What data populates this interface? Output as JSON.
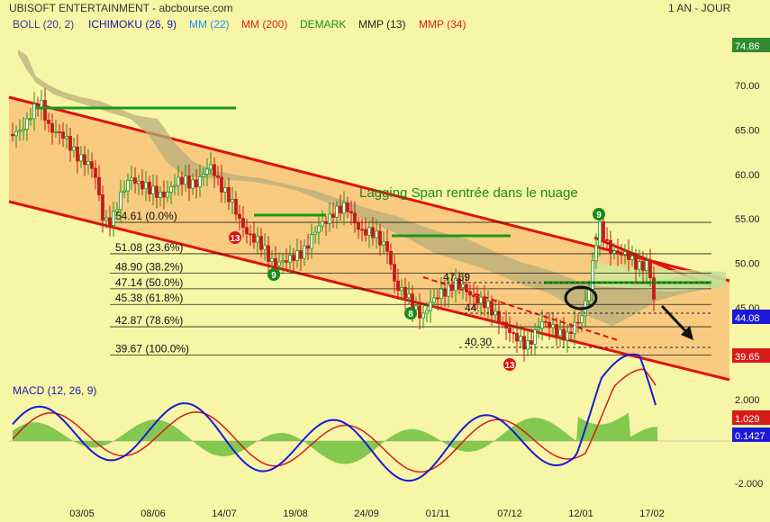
{
  "header": {
    "title": "UBISOFT ENTERTAINMENT - abcbourse.com",
    "period": "1 AN - JOUR"
  },
  "legend": [
    {
      "label": "BOLL (20, 2)",
      "color": "#3a3aa0"
    },
    {
      "label": "ICHIMOKU (26, 9)",
      "color": "#1a1ab0"
    },
    {
      "label": "MM (22)",
      "color": "#1e90ff"
    },
    {
      "label": "MM (200)",
      "color": "#e02020"
    },
    {
      "label": "DEMARK",
      "color": "#1a8a1a"
    },
    {
      "label": "MMP (13)",
      "color": "#222222"
    },
    {
      "label": "MMP (34)",
      "color": "#e02020"
    }
  ],
  "colors": {
    "background": "#f7f5a6",
    "up_candle": "#1a9a1a",
    "down_candle": "#c81818",
    "channel_line": "#e01010",
    "channel_fill": "#f8c37a",
    "cloud": "#b8ad7a",
    "macd_line": "#1a1ad8",
    "signal_line": "#d81a1a",
    "histogram": "#6fbf3f",
    "green_line": "#1a9a1a"
  },
  "price_axis": {
    "ticks": [
      "70.00",
      "65.00",
      "60.00",
      "55.00",
      "50.00",
      "45.00"
    ],
    "top_label": "74.86",
    "current_label": "44.08",
    "bottom_label": "39.65"
  },
  "fibonacci": [
    {
      "value": 54.61,
      "text": "54.61  (0.0%)"
    },
    {
      "value": 51.08,
      "text": "51.08  (23.6%)"
    },
    {
      "value": 48.9,
      "text": "48.90  (38.2%)"
    },
    {
      "value": 47.14,
      "text": "47.14  (50.0%)"
    },
    {
      "value": 45.38,
      "text": "45.38  (61.8%)"
    },
    {
      "value": 42.87,
      "text": "42.87  (78.6%)"
    },
    {
      "value": 39.67,
      "text": "39.67  (100.0%)"
    }
  ],
  "annotations": {
    "lagging_span": "Lagging Span rentrée dans le nuage",
    "level_47": "47.69",
    "level_44": "44.",
    "level_40": "40.30"
  },
  "macd": {
    "label": "MACD (12, 26, 9)",
    "ticks": [
      "2.000",
      "-2.000"
    ],
    "value_red": "1.029",
    "value_blue": "0.1427"
  },
  "x_axis": [
    "03/05",
    "08/06",
    "14/07",
    "19/08",
    "24/09",
    "01/11",
    "07/12",
    "12/01",
    "17/02"
  ],
  "chart_data": {
    "type": "candlestick",
    "title": "UBISOFT ENTERTAINMENT - abcbourse.com",
    "period": "1 AN - JOUR",
    "x": [
      "03/05",
      "08/06",
      "14/07",
      "19/08",
      "24/09",
      "01/11",
      "07/12",
      "12/01",
      "17/02"
    ],
    "close_approx": [
      65.5,
      60.0,
      57.5,
      51.0,
      54.5,
      47.5,
      42.5,
      48.0,
      44.1
    ],
    "ylim": [
      39.65,
      74.86
    ],
    "price_ticks": [
      45,
      50,
      55,
      60,
      65,
      70
    ],
    "current_price": 44.08,
    "fibonacci_levels": [
      54.61,
      51.08,
      48.9,
      47.14,
      45.38,
      42.87,
      39.67
    ],
    "macd_ylim": [
      -2,
      2
    ],
    "macd_last": 0.1427,
    "signal_last": 1.029
  }
}
